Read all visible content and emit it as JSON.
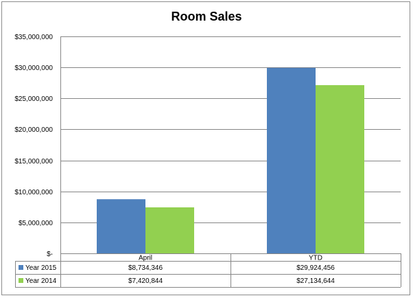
{
  "chart_data": {
    "type": "bar",
    "title": "Room Sales",
    "categories": [
      "April",
      "YTD"
    ],
    "series": [
      {
        "name": "Year 2015",
        "values": [
          8734346,
          29924456
        ],
        "labels": [
          "$8,734,346",
          "$29,924,456"
        ],
        "color": "#4f81bd"
      },
      {
        "name": "Year 2014",
        "values": [
          7420844,
          27134644
        ],
        "labels": [
          "$7,420,844",
          "$27,134,644"
        ],
        "color": "#92d050"
      }
    ],
    "ylim": [
      0,
      35000000
    ],
    "yticks": [
      0,
      5000000,
      10000000,
      15000000,
      20000000,
      25000000,
      30000000,
      35000000
    ],
    "ytick_labels": [
      "$-",
      "$5,000,000",
      "$10,000,000",
      "$15,000,000",
      "$20,000,000",
      "$25,000,000",
      "$30,000,000",
      "$35,000,000"
    ],
    "grid": true,
    "legend": "data-table"
  }
}
